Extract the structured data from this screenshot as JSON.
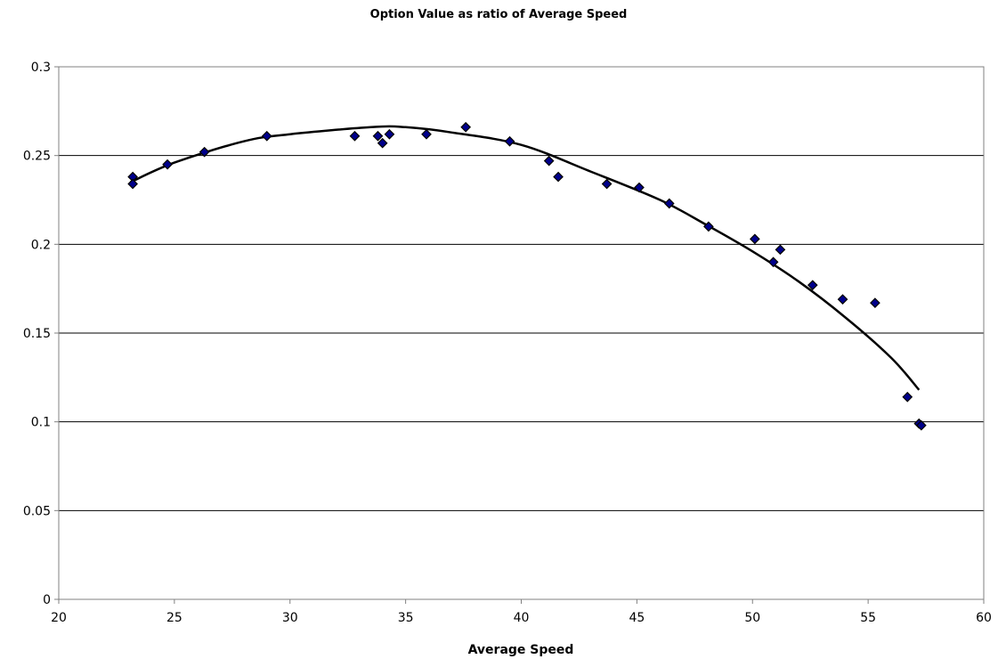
{
  "chart_data": {
    "type": "scatter",
    "title": "Option Value as ratio of Average Speed",
    "xlabel": "Average Speed",
    "ylabel": "",
    "xlim": [
      20,
      60
    ],
    "ylim": [
      0,
      0.3
    ],
    "x_ticks": [
      "20",
      "25",
      "30",
      "35",
      "40",
      "45",
      "50",
      "55",
      "60"
    ],
    "y_ticks": [
      "0",
      "0.05",
      "0.1",
      "0.15",
      "0.2",
      "0.25",
      "0.3"
    ],
    "grid": "horizontal major gridlines",
    "legend": "none",
    "colors": {
      "marker_fill": "#00008B",
      "marker_stroke": "#000000",
      "trendline": "#000000",
      "gridline": "#000000",
      "axis": "#808080"
    },
    "series": [
      {
        "marker": "diamond",
        "points": [
          {
            "x": 23.2,
            "y": 0.238
          },
          {
            "x": 23.2,
            "y": 0.234
          },
          {
            "x": 24.7,
            "y": 0.245
          },
          {
            "x": 26.3,
            "y": 0.252
          },
          {
            "x": 29.0,
            "y": 0.261
          },
          {
            "x": 32.8,
            "y": 0.261
          },
          {
            "x": 33.8,
            "y": 0.261
          },
          {
            "x": 34.0,
            "y": 0.257
          },
          {
            "x": 34.3,
            "y": 0.262
          },
          {
            "x": 35.9,
            "y": 0.262
          },
          {
            "x": 37.6,
            "y": 0.266
          },
          {
            "x": 39.5,
            "y": 0.258
          },
          {
            "x": 41.2,
            "y": 0.247
          },
          {
            "x": 41.6,
            "y": 0.238
          },
          {
            "x": 43.7,
            "y": 0.234
          },
          {
            "x": 45.1,
            "y": 0.232
          },
          {
            "x": 46.4,
            "y": 0.223
          },
          {
            "x": 48.1,
            "y": 0.21
          },
          {
            "x": 50.1,
            "y": 0.203
          },
          {
            "x": 50.9,
            "y": 0.19
          },
          {
            "x": 51.2,
            "y": 0.197
          },
          {
            "x": 52.6,
            "y": 0.177
          },
          {
            "x": 53.9,
            "y": 0.169
          },
          {
            "x": 55.3,
            "y": 0.167
          },
          {
            "x": 56.7,
            "y": 0.114
          },
          {
            "x": 57.2,
            "y": 0.099
          },
          {
            "x": 57.3,
            "y": 0.098
          }
        ]
      }
    ],
    "trendline": {
      "type": "polynomial",
      "order": 2,
      "x_range": [
        23.1,
        57.2
      ],
      "points": [
        {
          "x": 23.1,
          "y": 0.235
        },
        {
          "x": 25.0,
          "y": 0.246
        },
        {
          "x": 28.0,
          "y": 0.258
        },
        {
          "x": 30.0,
          "y": 0.262
        },
        {
          "x": 33.5,
          "y": 0.266
        },
        {
          "x": 35.0,
          "y": 0.266
        },
        {
          "x": 37.0,
          "y": 0.263
        },
        {
          "x": 40.0,
          "y": 0.256
        },
        {
          "x": 43.0,
          "y": 0.241
        },
        {
          "x": 46.0,
          "y": 0.225
        },
        {
          "x": 48.0,
          "y": 0.211
        },
        {
          "x": 50.0,
          "y": 0.196
        },
        {
          "x": 52.0,
          "y": 0.179
        },
        {
          "x": 54.0,
          "y": 0.159
        },
        {
          "x": 56.0,
          "y": 0.136
        },
        {
          "x": 57.2,
          "y": 0.118
        }
      ]
    }
  }
}
